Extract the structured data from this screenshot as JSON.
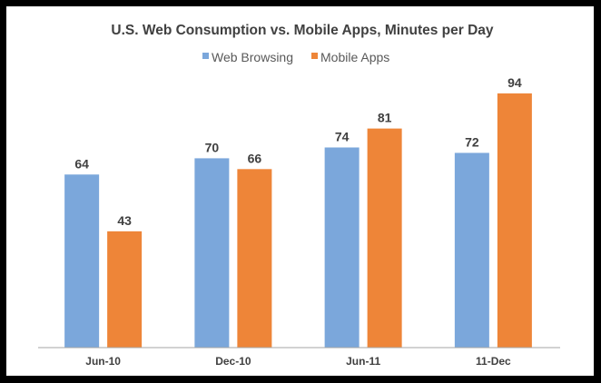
{
  "chart_data": {
    "type": "bar",
    "title": "U.S. Web Consumption vs. Mobile Apps, Minutes per Day",
    "categories": [
      "Jun-10",
      "Dec-10",
      "Jun-11",
      "11-Dec"
    ],
    "series": [
      {
        "name": "Web Browsing",
        "color": "#7BA7DB",
        "values": [
          64,
          70,
          74,
          72
        ]
      },
      {
        "name": "Mobile Apps",
        "color": "#EE8538",
        "values": [
          43,
          66,
          81,
          94
        ]
      }
    ],
    "xlabel": "",
    "ylabel": "",
    "ylim": [
      0,
      100
    ],
    "grid": false,
    "legend": "top-center",
    "data_labels": true
  }
}
